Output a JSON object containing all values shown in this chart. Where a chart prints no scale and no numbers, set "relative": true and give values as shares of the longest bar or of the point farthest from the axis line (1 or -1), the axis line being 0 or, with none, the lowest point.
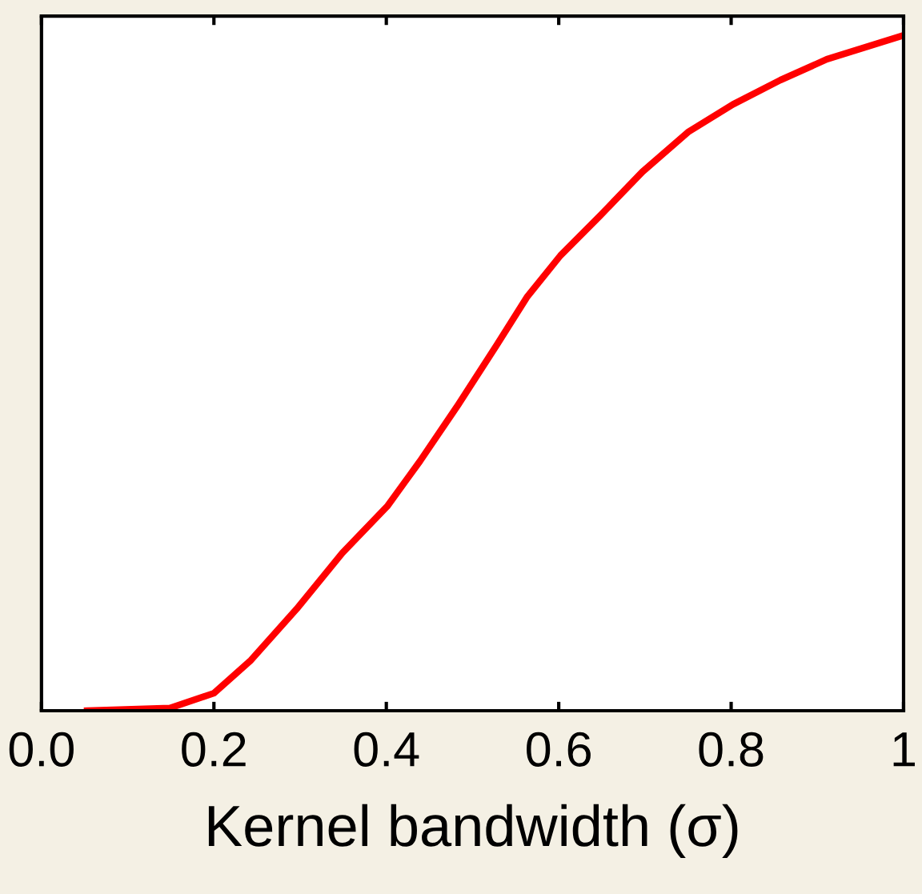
{
  "chart_data": {
    "type": "line",
    "xlabel": "Kernel bandwidth (σ)",
    "relative": true,
    "tick_labels": "x",
    "grid": false,
    "marker": "none",
    "line_style": "solid",
    "xlim": [
      0,
      1
    ],
    "xticks": [
      {
        "value": 0,
        "label": "0.0"
      },
      0.2,
      0.4,
      0.6,
      0.8,
      1
    ],
    "series": [
      {
        "color": "#ff0000",
        "x": [
          0.053,
          0.149,
          0.2,
          0.243,
          0.296,
          0.349,
          0.401,
          0.439,
          0.483,
          0.528,
          0.563,
          0.602,
          0.648,
          0.697,
          0.75,
          0.802,
          0.857,
          0.911,
          0.996
        ],
        "values": [
          0.0,
          0.004,
          0.026,
          0.075,
          0.151,
          0.234,
          0.303,
          0.37,
          0.453,
          0.542,
          0.613,
          0.675,
          0.734,
          0.799,
          0.858,
          0.899,
          0.935,
          0.966,
          1.0
        ]
      }
    ]
  }
}
